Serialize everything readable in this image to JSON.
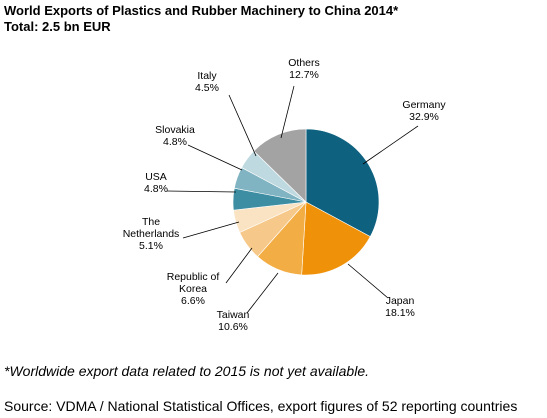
{
  "title": "World Exports of Plastics and Rubber Machinery to China 2014*",
  "subtitle": "Total: 2.5 bn EUR",
  "footnote": "*Worldwide export data related to 2015 is not yet available.",
  "source": "Source: VDMA / National Statistical Offices, export figures of 52 reporting countries",
  "chart_data": {
    "type": "pie",
    "title": "World Exports of Plastics and Rubber Machinery to China 2014*",
    "subtitle": "Total: 2.5 bn EUR",
    "unit": "%",
    "slices": [
      {
        "label": "Germany",
        "value": 32.9,
        "value_label": "32.9%",
        "color": "#0e6280"
      },
      {
        "label": "Japan",
        "value": 18.1,
        "value_label": "18.1%",
        "color": "#f0910a"
      },
      {
        "label": "Taiwan",
        "value": 10.6,
        "value_label": "10.6%",
        "color": "#f3ad45"
      },
      {
        "label": "Republic of Korea",
        "label_lines": [
          "Republic of",
          "Korea"
        ],
        "value": 6.6,
        "value_label": "6.6%",
        "color": "#f6c98a"
      },
      {
        "label": "The Netherlands",
        "label_lines": [
          "The",
          "Netherlands"
        ],
        "value": 5.1,
        "value_label": "5.1%",
        "color": "#fae3c3"
      },
      {
        "label": "USA",
        "value": 4.8,
        "value_label": "4.8%",
        "color": "#3d8ea3"
      },
      {
        "label": "Slovakia",
        "value": 4.8,
        "value_label": "4.8%",
        "color": "#80b4c2"
      },
      {
        "label": "Italy",
        "value": 4.5,
        "value_label": "4.5%",
        "color": "#bed9e0"
      },
      {
        "label": "Others",
        "value": 12.7,
        "value_label": "12.7%",
        "color": "#a3a3a3"
      }
    ],
    "start_angle": "12 o'clock",
    "direction": "clockwise",
    "labels": "outside with leader lines"
  }
}
